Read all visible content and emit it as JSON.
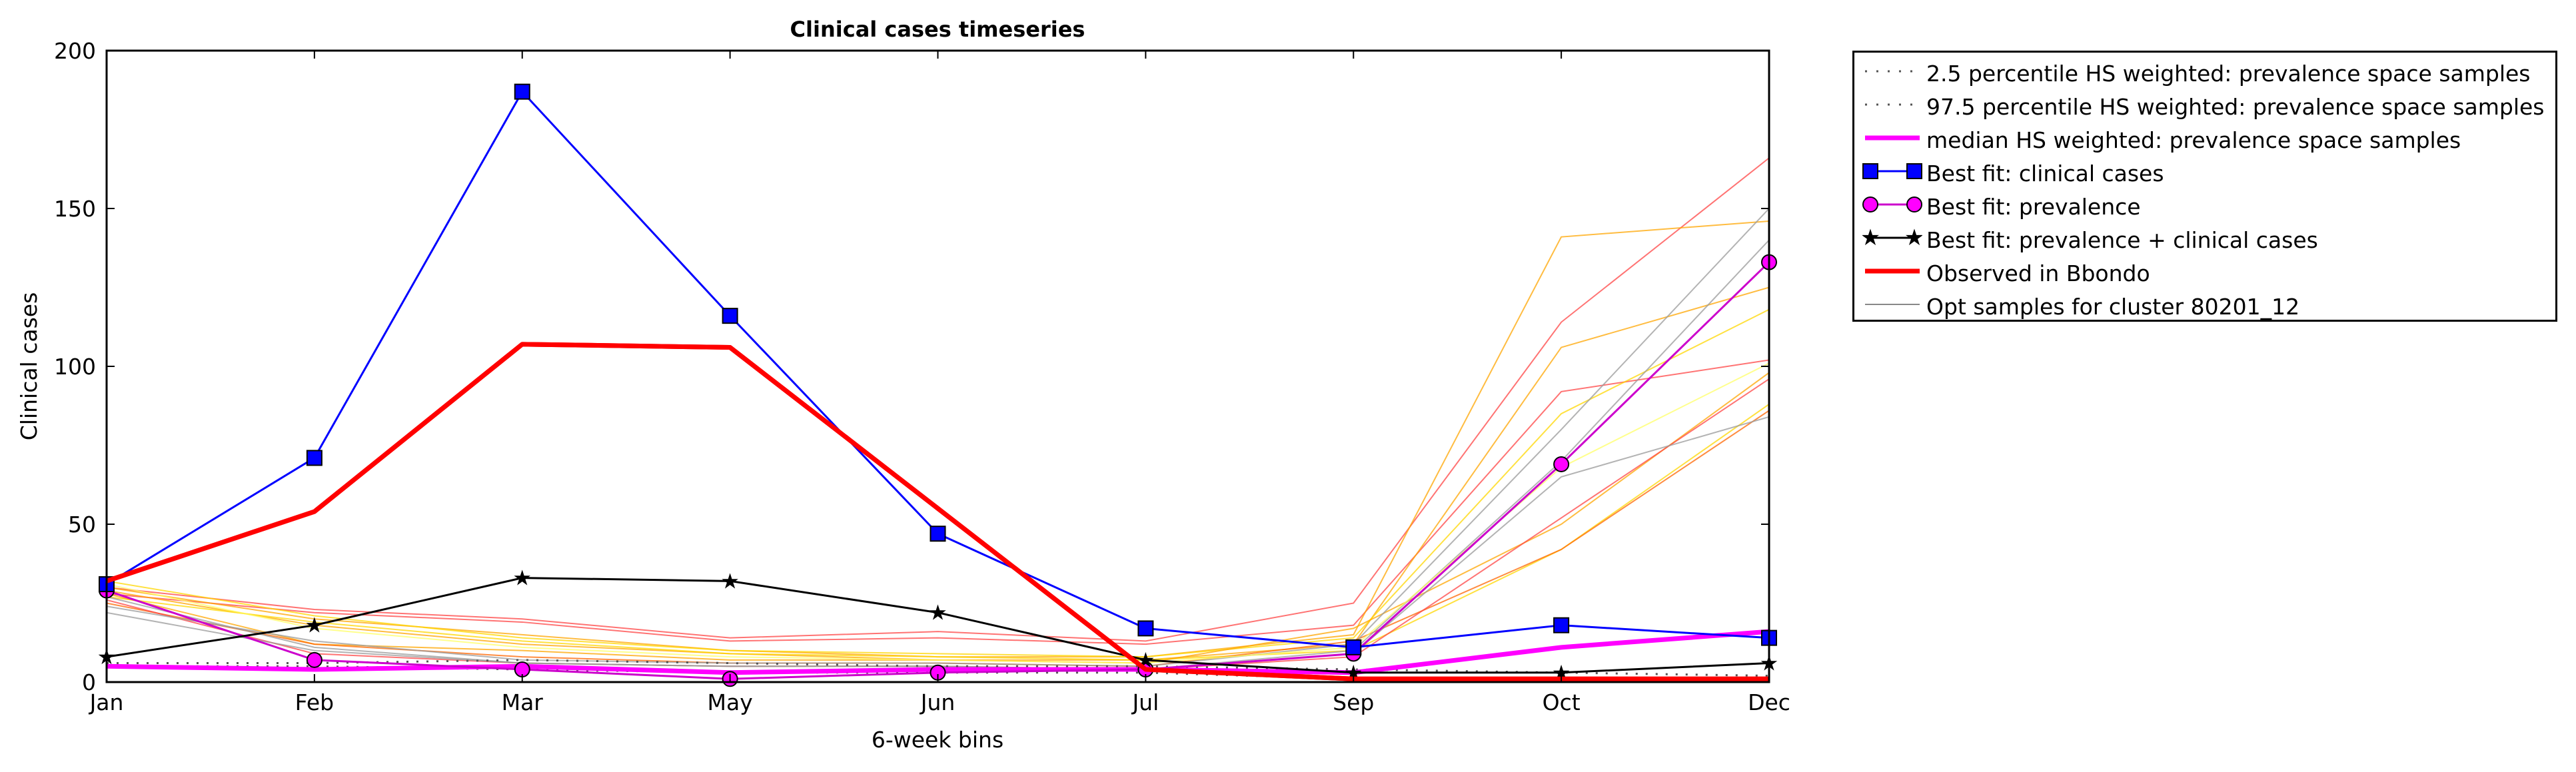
{
  "chart_data": {
    "type": "line",
    "title": "Clinical cases timeseries",
    "xlabel": "6-week bins",
    "ylabel": "Clinical cases",
    "categories": [
      "Jan",
      "Feb",
      "Mar",
      "May",
      "Jun",
      "Jul",
      "Sep",
      "Oct",
      "Dec"
    ],
    "ylim": [
      0,
      200
    ],
    "yticks": [
      "0",
      "50",
      "100",
      "150",
      "200"
    ],
    "grid": false,
    "legend_position": "outside-right",
    "series": [
      {
        "name": "2.5 percentile HS weighted: prevalence space samples",
        "color": "#555555",
        "style": "dotted",
        "values": [
          5,
          5,
          4,
          3,
          3,
          3,
          1,
          1,
          1
        ]
      },
      {
        "name": "97.5 percentile HS weighted: prevalence space samples",
        "color": "#555555",
        "style": "dotted",
        "values": [
          6,
          6,
          7,
          6,
          5,
          5,
          4,
          3,
          2
        ]
      },
      {
        "name": "median HS weighted: prevalence space samples",
        "color": "#ff00ff",
        "style": "thick",
        "values": [
          5,
          4,
          5,
          3,
          4,
          4,
          3,
          11,
          16
        ]
      },
      {
        "name": "Best fit: clinical cases",
        "color": "#0000ff",
        "marker": "square",
        "values": [
          31,
          71,
          187,
          116,
          47,
          17,
          11,
          18,
          14
        ]
      },
      {
        "name": "Best fit: prevalence",
        "color": "#cc00cc",
        "marker": "circle",
        "values": [
          29,
          7,
          4,
          1,
          3,
          4,
          9,
          69,
          133
        ]
      },
      {
        "name": "Best fit: prevalence + clinical cases",
        "color": "#000000",
        "marker": "star",
        "values": [
          8,
          18,
          33,
          32,
          22,
          7,
          3,
          3,
          6
        ]
      },
      {
        "name": "Observed in Bbondo",
        "color": "#ff0000",
        "style": "thick-observed",
        "values": [
          32,
          54,
          107,
          106,
          55,
          4,
          1,
          1,
          1
        ]
      }
    ],
    "sample_series_label": "Opt samples for cluster 80201_12",
    "sample_series": [
      {
        "color": "#ff4444",
        "values": [
          30,
          23,
          20,
          14,
          16,
          13,
          25,
          114,
          166
        ]
      },
      {
        "color": "#ff4444",
        "values": [
          28,
          22,
          19,
          13,
          14,
          12,
          18,
          92,
          102
        ]
      },
      {
        "color": "#ffa500",
        "values": [
          30,
          20,
          15,
          10,
          8,
          8,
          15,
          141,
          146
        ]
      },
      {
        "color": "#ffa500",
        "values": [
          29,
          18,
          12,
          9,
          7,
          7,
          12,
          106,
          125
        ]
      },
      {
        "color": "#ffd700",
        "values": [
          32,
          21,
          14,
          10,
          9,
          8,
          14,
          85,
          118
        ]
      },
      {
        "color": "#ffd700",
        "values": [
          27,
          19,
          13,
          9,
          8,
          7,
          10,
          42,
          88
        ]
      },
      {
        "color": "#ffa500",
        "values": [
          28,
          12,
          10,
          7,
          7,
          6,
          17,
          50,
          98
        ]
      },
      {
        "color": "#ff6600",
        "values": [
          25,
          12,
          8,
          6,
          6,
          5,
          13,
          42,
          86
        ]
      },
      {
        "color": "#ff4444",
        "values": [
          26,
          9,
          6,
          5,
          5,
          4,
          8,
          52,
          96
        ]
      },
      {
        "color": "#999999",
        "values": [
          24,
          13,
          7,
          6,
          6,
          5,
          12,
          80,
          150
        ]
      },
      {
        "color": "#999999",
        "values": [
          22,
          10,
          6,
          5,
          5,
          4,
          10,
          70,
          140
        ]
      },
      {
        "color": "#999999",
        "values": [
          27,
          11,
          6,
          5,
          5,
          4,
          9,
          65,
          84
        ]
      },
      {
        "color": "#ffff66",
        "values": [
          31,
          17,
          11,
          8,
          7,
          6,
          11,
          68,
          101
        ]
      }
    ]
  }
}
